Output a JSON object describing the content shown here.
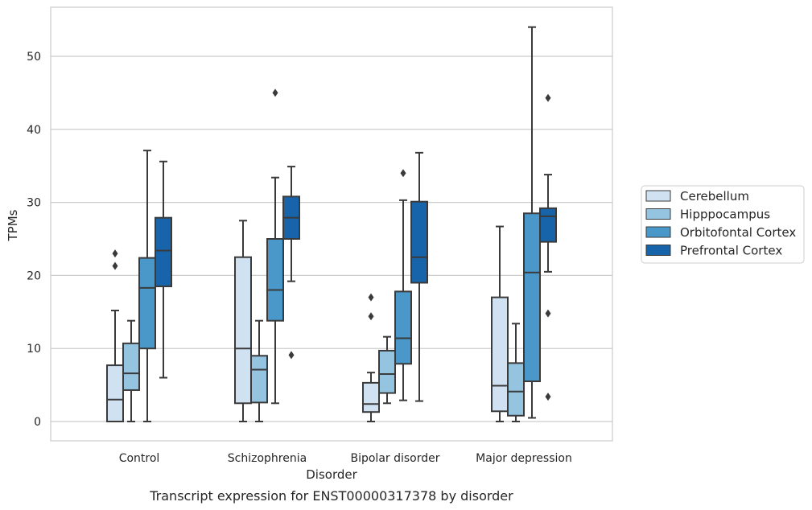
{
  "caption": "Transcript expression for ENST00000317378 by disorder",
  "chart_data": {
    "type": "box",
    "xlabel": "Disorder",
    "ylabel": "TPMs",
    "ylim": [
      -2.5,
      57
    ],
    "yticks": [
      0,
      10,
      20,
      30,
      40,
      50
    ],
    "ytick_labels": [
      "0",
      "10",
      "20",
      "30",
      "40",
      "50"
    ],
    "grid": "horizontal",
    "legend_position": "right",
    "categories": [
      "Control",
      "Schizophrenia",
      "Bipolar disorder",
      "Major depression"
    ],
    "series": [
      {
        "name": "Cerebellum",
        "color": "#d0e1f2",
        "boxes": [
          {
            "whislo": 0,
            "q1": 0,
            "med": 3,
            "q3": 7.7,
            "whishi": 15.2,
            "fliers": [
              21.3,
              23
            ]
          },
          {
            "whislo": 0,
            "q1": 2.5,
            "med": 10,
            "q3": 22.5,
            "whishi": 27.5,
            "fliers": []
          },
          {
            "whislo": 0,
            "q1": 1.3,
            "med": 2.4,
            "q3": 5.3,
            "whishi": 6.7,
            "fliers": [
              14.4,
              17
            ]
          },
          {
            "whislo": 0,
            "q1": 1.4,
            "med": 4.9,
            "q3": 17,
            "whishi": 26.7,
            "fliers": []
          }
        ]
      },
      {
        "name": "Hipppocampus",
        "color": "#94c4df",
        "boxes": [
          {
            "whislo": 0,
            "q1": 4.3,
            "med": 6.6,
            "q3": 10.7,
            "whishi": 13.8,
            "fliers": []
          },
          {
            "whislo": 0,
            "q1": 2.6,
            "med": 7.1,
            "q3": 9,
            "whishi": 13.8,
            "fliers": []
          },
          {
            "whislo": 2.5,
            "q1": 3.9,
            "med": 6.5,
            "q3": 9.7,
            "whishi": 11.6,
            "fliers": []
          },
          {
            "whislo": 0,
            "q1": 0.8,
            "med": 4.1,
            "q3": 8,
            "whishi": 13.4,
            "fliers": []
          }
        ]
      },
      {
        "name": "Orbitofontal Cortex",
        "color": "#4a98c9",
        "boxes": [
          {
            "whislo": 0,
            "q1": 10,
            "med": 18.3,
            "q3": 22.4,
            "whishi": 37.1,
            "fliers": []
          },
          {
            "whislo": 2.5,
            "q1": 13.8,
            "med": 18,
            "q3": 25,
            "whishi": 33.4,
            "fliers": [
              45
            ]
          },
          {
            "whislo": 2.9,
            "q1": 7.9,
            "med": 11.4,
            "q3": 17.8,
            "whishi": 30.3,
            "fliers": [
              34
            ]
          },
          {
            "whislo": 0.5,
            "q1": 5.5,
            "med": 20.4,
            "q3": 28.5,
            "whishi": 54,
            "fliers": []
          }
        ]
      },
      {
        "name": "Prefrontal Cortex",
        "color": "#1764ab",
        "boxes": [
          {
            "whislo": 6,
            "q1": 18.5,
            "med": 23.4,
            "q3": 27.9,
            "whishi": 35.6,
            "fliers": []
          },
          {
            "whislo": 19.2,
            "q1": 25,
            "med": 27.9,
            "q3": 30.8,
            "whishi": 34.9,
            "fliers": [
              9.1
            ]
          },
          {
            "whislo": 2.8,
            "q1": 19,
            "med": 22.5,
            "q3": 30.1,
            "whishi": 36.8,
            "fliers": []
          },
          {
            "whislo": 20.5,
            "q1": 24.6,
            "med": 28.1,
            "q3": 29.2,
            "whishi": 33.8,
            "fliers": [
              3.4,
              14.8,
              44.3
            ]
          }
        ]
      }
    ]
  }
}
